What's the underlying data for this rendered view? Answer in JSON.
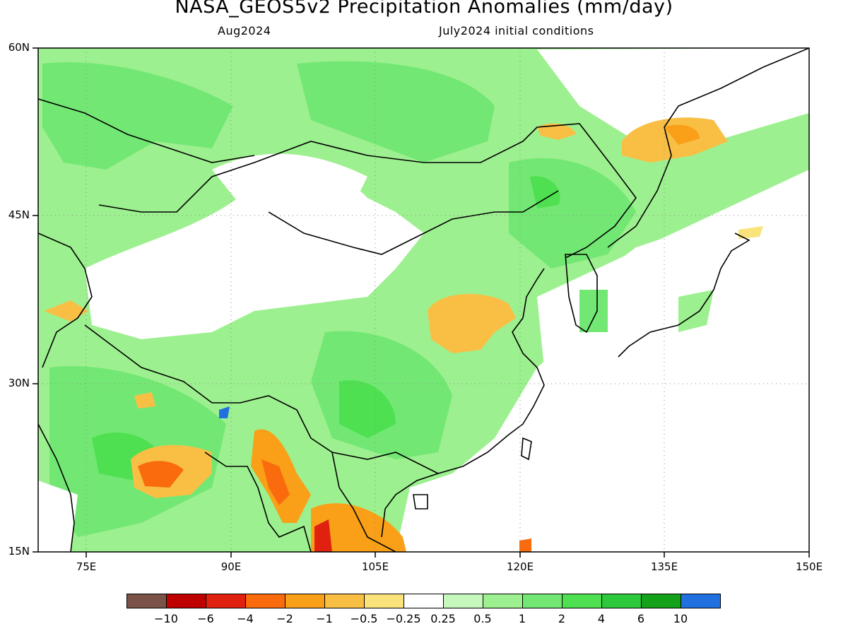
{
  "header": {
    "title": "NASA_GEOS5v2 Precipitation Anomalies (mm/day)",
    "target_month": "Aug2024",
    "initial_conditions": "July2024 initial conditions"
  },
  "map": {
    "region": "East and South Asia",
    "projection": "lat-lon",
    "lat_range": [
      15,
      60
    ],
    "lon_range": [
      70,
      150
    ],
    "lat_labels": [
      "60N",
      "45N",
      "30N",
      "15N"
    ],
    "lon_labels": [
      "75E",
      "90E",
      "105E",
      "120E",
      "135E",
      "150E"
    ]
  },
  "legend": {
    "labels": [
      "-10",
      "-6",
      "-4",
      "-2",
      "-1",
      "-0.5",
      "-0.25",
      "0.25",
      "0.5",
      "1",
      "2",
      "4",
      "6",
      "10"
    ],
    "colors": [
      "#7a5247",
      "#bf0000",
      "#e0210f",
      "#f96b0c",
      "#f9a018",
      "#f9bf45",
      "#fbe37c",
      "#ffffff",
      "#c6f7bd",
      "#9df08f",
      "#73e774",
      "#4ee051",
      "#2ec83c",
      "#13a21a",
      "#2070e0"
    ]
  }
}
